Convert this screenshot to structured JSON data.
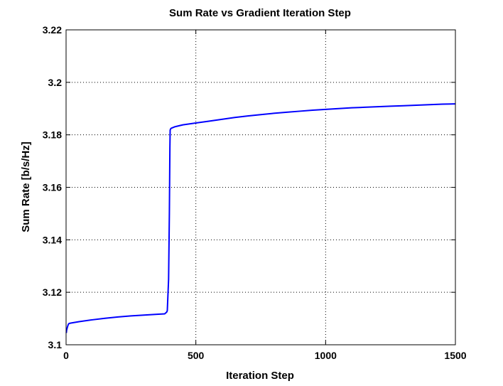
{
  "chart_data": {
    "type": "line",
    "title": "Sum Rate vs Gradient Iteration Step",
    "xlabel": "Iteration Step",
    "ylabel": "Sum Rate [b/s/Hz]",
    "xlim": [
      0,
      1500
    ],
    "ylim": [
      3.1,
      3.22
    ],
    "xticks": [
      0,
      500,
      1000,
      1500
    ],
    "xtick_labels": [
      "0",
      "500",
      "1000",
      "1500"
    ],
    "yticks": [
      3.1,
      3.12,
      3.14,
      3.16,
      3.18,
      3.2,
      3.22
    ],
    "ytick_labels": [
      "3.1",
      "3.12",
      "3.14",
      "3.16",
      "3.18",
      "3.2",
      "3.22"
    ],
    "grid": true,
    "legend": "none",
    "series": [
      {
        "color": "#0000ff",
        "x": [
          1,
          2,
          4,
          6,
          8,
          10,
          15,
          20,
          50,
          100,
          150,
          200,
          250,
          300,
          350,
          380,
          388,
          390,
          395,
          398,
          400,
          401,
          403,
          405,
          420,
          450,
          500,
          550,
          600,
          650,
          700,
          750,
          800,
          850,
          900,
          950,
          1000,
          1050,
          1100,
          1150,
          1200,
          1250,
          1300,
          1350,
          1400,
          1450,
          1500
        ],
        "y": [
          3.1045,
          3.1055,
          3.1063,
          3.107,
          3.1076,
          3.108,
          3.1082,
          3.1083,
          3.1088,
          3.1095,
          3.1101,
          3.1106,
          3.111,
          3.1113,
          3.1116,
          3.1118,
          3.1125,
          3.113,
          3.125,
          3.15,
          3.175,
          3.1818,
          3.1823,
          3.1825,
          3.1831,
          3.1838,
          3.1845,
          3.1852,
          3.1859,
          3.1866,
          3.1872,
          3.1877,
          3.1882,
          3.1886,
          3.189,
          3.1894,
          3.1897,
          3.19,
          3.1903,
          3.1905,
          3.1907,
          3.1909,
          3.1911,
          3.1913,
          3.1915,
          3.1917,
          3.1918
        ]
      }
    ]
  }
}
